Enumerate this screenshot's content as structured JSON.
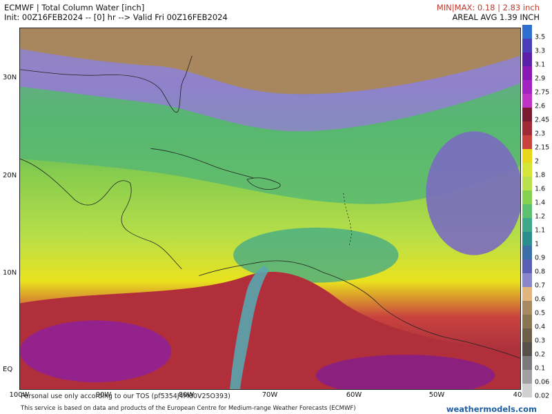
{
  "header": {
    "title": "ECMWF | Total Column Water [inch]",
    "init": "Init: 00Z16FEB2024 -- [0] hr --> Valid Fri 00Z16FEB2024",
    "minmax": "MIN|MAX: 0.18 | 2.83 inch",
    "areal": "AREAL AVG 1.39 INCH"
  },
  "axes": {
    "lat_labels": [
      "30N",
      "20N",
      "10N",
      "EQ"
    ],
    "lon_labels": [
      "100W",
      "90W",
      "80W",
      "70W",
      "60W",
      "50W",
      "40"
    ]
  },
  "colorbar": {
    "labels": [
      "3.5",
      "3.3",
      "3.1",
      "2.9",
      "2.75",
      "2.6",
      "2.45",
      "2.3",
      "2.15",
      "2",
      "1.8",
      "1.6",
      "1.4",
      "1.2",
      "1.1",
      "1",
      "0.9",
      "0.8",
      "0.7",
      "0.6",
      "0.5",
      "0.4",
      "0.3",
      "0.2",
      "0.1",
      "0.06",
      "0.02"
    ],
    "colors": [
      "#2f6fd0",
      "#4a3fb8",
      "#5b1fa8",
      "#8a18b5",
      "#a322c2",
      "#bf33c5",
      "#7a1a30",
      "#a02a35",
      "#c9423e",
      "#e8d81a",
      "#d4e53a",
      "#b7e04a",
      "#86d050",
      "#5cc070",
      "#3ea88a",
      "#2a8e8c",
      "#3a6ea5",
      "#5a5fb5",
      "#8a86cc",
      "#e0b67e",
      "#a88a62",
      "#8a7552",
      "#6e6048",
      "#55504a",
      "#7a7a7a",
      "#a0a0a0",
      "#d0d0d0"
    ]
  },
  "footer": {
    "personal": "Personal use only according to our TOS (pf5354J4M80V25O393)",
    "service": "This service is based on data and products of the European Centre for Medium-range Weather Forecasts (ECMWF)",
    "brand": "weathermodels.com"
  }
}
